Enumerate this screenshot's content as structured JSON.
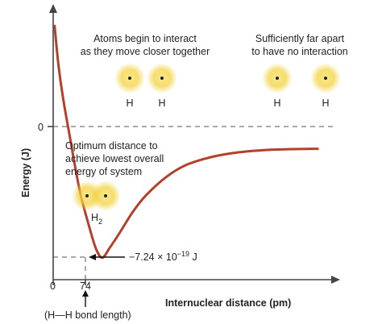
{
  "chart_data": {
    "type": "line",
    "title": "",
    "xlabel": "Internuclear distance (pm)",
    "ylabel": "Energy (J)",
    "x_ticks": [
      "0",
      "74"
    ],
    "y_ticks": [
      "0"
    ],
    "minimum": {
      "x": 74,
      "y": -7.24e-19,
      "label_prefix": "−7.24 × 10",
      "label_exponent": "−19",
      "label_suffix": " J"
    },
    "series": [
      {
        "color": "#b2402b",
        "x": [
          2,
          8,
          15,
          25,
          40,
          55,
          65,
          74,
          85,
          100,
          120,
          140,
          170,
          200,
          240,
          280,
          320,
          360,
          400
        ],
        "y": [
          8.2e-19,
          5.5e-19,
          3.3e-19,
          8e-20,
          -2.8e-19,
          -5.3e-19,
          -6.7e-19,
          -7.24e-19,
          -6.6e-19,
          -5.6e-19,
          -4.2e-19,
          -3.1e-19,
          -1.9e-19,
          -1.1e-19,
          -5.5e-20,
          -2.5e-20,
          -1e-20,
          -4e-21,
          -2e-21
        ]
      }
    ],
    "xlim": [
      0,
      420
    ],
    "ylim": [
      -8.7e-19,
      9.1e-19
    ],
    "grid": false,
    "legend": "none"
  },
  "annotations": {
    "interact_line1": "Atoms begin to interact",
    "interact_line2": "as they move closer together",
    "apart_line1": "Sufficiently far apart",
    "apart_line2": "to have no interaction",
    "optimum_line1": "Optimum distance to",
    "optimum_line2": "achieve lowest overall",
    "optimum_line3": "energy of system",
    "atom_label": "H",
    "molecule_label": "H",
    "molecule_subscript": "2",
    "bond_length_label": "(H—H bond length)"
  },
  "colors": {
    "curve": "#b2402b",
    "atom_glow": "#f2cf33"
  }
}
